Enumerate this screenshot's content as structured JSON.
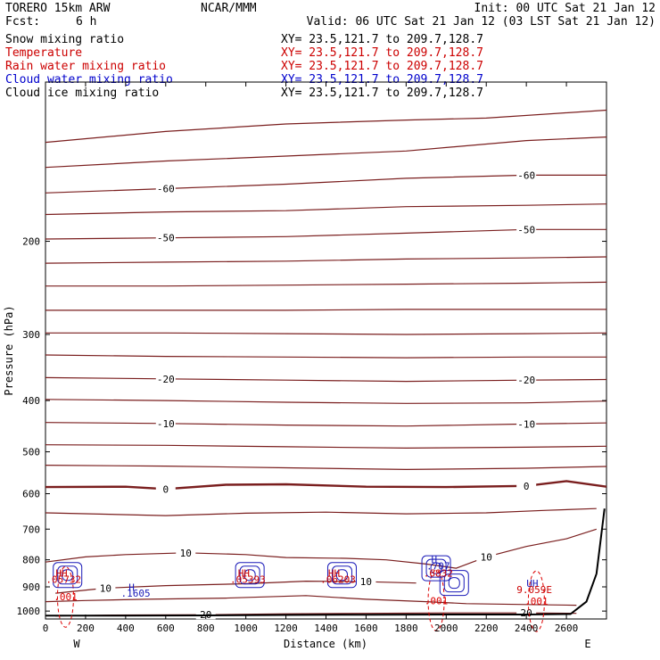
{
  "header": {
    "model": "TORERO  15km ARW",
    "center": "NCAR/MMM",
    "init": "Init: 00 UTC Sat 21 Jan 12",
    "fcst_label": "Fcst:",
    "fcst_value": "6 h",
    "valid": "Valid: 06 UTC Sat 21 Jan 12 (03 LST Sat 21 Jan 12)"
  },
  "legend": [
    {
      "name": "Snow mixing ratio",
      "xy": "XY=  23.5,121.7 to 209.7,128.7",
      "color": "#000000"
    },
    {
      "name": "Temperature",
      "xy": "XY=  23.5,121.7 to 209.7,128.7",
      "color": "#cc0000"
    },
    {
      "name": "Rain water mixing ratio",
      "xy": "XY=  23.5,121.7 to 209.7,128.7",
      "color": "#cc0000"
    },
    {
      "name": "Cloud water mixing ratio",
      "xy": "XY=  23.5,121.7 to 209.7,128.7",
      "color": "#0000cc"
    },
    {
      "name": "Cloud ice mixing ratio",
      "xy": "XY=  23.5,121.7 to 209.7,128.7",
      "color": "#000000"
    }
  ],
  "colors": {
    "temperature": "#7a1e1e",
    "rain": "#dd0000",
    "cloud_water": "#1a1ab8",
    "terrain": "#000000"
  },
  "chart_data": {
    "type": "line",
    "title": "",
    "xlabel": "Distance (km)",
    "ylabel": "Pressure (hPa)",
    "xlim": [
      0,
      2800
    ],
    "ylim": [
      1035,
      100
    ],
    "y_scale": "log",
    "x_ticks": [
      "0",
      "200",
      "400",
      "600",
      "800",
      "1000",
      "1200",
      "1400",
      "1600",
      "1800",
      "2000",
      "2200",
      "2400",
      "2600"
    ],
    "y_ticks": [
      "200",
      "300",
      "400",
      "500",
      "600",
      "700",
      "800",
      "900",
      "1000"
    ],
    "end_labels": {
      "left": "W",
      "right": "E"
    },
    "temperature_contours": [
      {
        "value": -70,
        "points": [
          [
            0,
            130
          ],
          [
            600,
            124
          ],
          [
            1200,
            120
          ],
          [
            1800,
            118
          ],
          [
            2200,
            117
          ],
          [
            2800,
            113
          ]
        ]
      },
      {
        "value": -60,
        "points": [
          [
            0,
            145
          ],
          [
            600,
            141
          ],
          [
            1200,
            138
          ],
          [
            1800,
            135
          ],
          [
            2400,
            129
          ],
          [
            2800,
            127
          ]
        ]
      },
      {
        "value": -60,
        "label": "-60",
        "points": [
          [
            0,
            162
          ],
          [
            600,
            159
          ],
          [
            1200,
            156
          ],
          [
            1800,
            152
          ],
          [
            2400,
            150
          ],
          [
            2800,
            150
          ]
        ]
      },
      {
        "value": -55,
        "points": [
          [
            0,
            178
          ],
          [
            600,
            176
          ],
          [
            1200,
            175
          ],
          [
            1800,
            172
          ],
          [
            2400,
            171
          ],
          [
            2800,
            170
          ]
        ]
      },
      {
        "value": -50,
        "label": "-50",
        "points": [
          [
            0,
            198
          ],
          [
            600,
            197
          ],
          [
            1200,
            196
          ],
          [
            1800,
            193
          ],
          [
            2400,
            190
          ],
          [
            2800,
            190
          ]
        ]
      },
      {
        "value": -45,
        "points": [
          [
            0,
            220
          ],
          [
            600,
            219
          ],
          [
            1200,
            218
          ],
          [
            1800,
            216
          ],
          [
            2400,
            215
          ],
          [
            2800,
            214
          ]
        ]
      },
      {
        "value": -40,
        "points": [
          [
            0,
            243
          ],
          [
            600,
            243
          ],
          [
            1200,
            242
          ],
          [
            1800,
            241
          ],
          [
            2400,
            240
          ],
          [
            2800,
            239
          ]
        ]
      },
      {
        "value": -35,
        "points": [
          [
            0,
            270
          ],
          [
            600,
            270
          ],
          [
            1200,
            270
          ],
          [
            1800,
            269
          ],
          [
            2400,
            269
          ],
          [
            2800,
            269
          ]
        ]
      },
      {
        "value": -30,
        "points": [
          [
            0,
            298
          ],
          [
            600,
            298
          ],
          [
            1200,
            299
          ],
          [
            1800,
            300
          ],
          [
            2400,
            299
          ],
          [
            2800,
            298
          ]
        ]
      },
      {
        "value": -25,
        "points": [
          [
            0,
            328
          ],
          [
            600,
            330
          ],
          [
            1200,
            331
          ],
          [
            1800,
            332
          ],
          [
            2400,
            331
          ],
          [
            2800,
            331
          ]
        ]
      },
      {
        "value": -20,
        "label": "-20",
        "points": [
          [
            0,
            362
          ],
          [
            600,
            364
          ],
          [
            1200,
            366
          ],
          [
            1800,
            368
          ],
          [
            2400,
            366
          ],
          [
            2800,
            365
          ]
        ]
      },
      {
        "value": -15,
        "points": [
          [
            0,
            398
          ],
          [
            600,
            400
          ],
          [
            1200,
            403
          ],
          [
            1800,
            405
          ],
          [
            2400,
            404
          ],
          [
            2800,
            401
          ]
        ]
      },
      {
        "value": -10,
        "label": "-10",
        "points": [
          [
            0,
            440
          ],
          [
            600,
            442
          ],
          [
            1200,
            445
          ],
          [
            1800,
            447
          ],
          [
            2400,
            443
          ],
          [
            2800,
            441
          ]
        ]
      },
      {
        "value": -5,
        "points": [
          [
            0,
            485
          ],
          [
            600,
            486
          ],
          [
            1200,
            489
          ],
          [
            1800,
            492
          ],
          [
            2400,
            490
          ],
          [
            2800,
            488
          ]
        ]
      },
      {
        "value": -5,
        "points": [
          [
            0,
            530
          ],
          [
            600,
            532
          ],
          [
            1200,
            536
          ],
          [
            1800,
            540
          ],
          [
            2400,
            537
          ],
          [
            2800,
            533
          ]
        ]
      },
      {
        "value": 0,
        "label": "0",
        "bold": true,
        "points": [
          [
            0,
            583
          ],
          [
            400,
            582
          ],
          [
            600,
            588
          ],
          [
            900,
            577
          ],
          [
            1200,
            576
          ],
          [
            1600,
            582
          ],
          [
            2000,
            583
          ],
          [
            2400,
            580
          ],
          [
            2600,
            568
          ],
          [
            2800,
            582
          ]
        ]
      },
      {
        "value": 5,
        "points": [
          [
            0,
            652
          ],
          [
            600,
            660
          ],
          [
            1000,
            653
          ],
          [
            1400,
            650
          ],
          [
            1800,
            655
          ],
          [
            2200,
            652
          ],
          [
            2500,
            645
          ],
          [
            2750,
            640
          ]
        ]
      },
      {
        "value": 10,
        "label": "10",
        "points": [
          [
            0,
            808
          ],
          [
            200,
            790
          ],
          [
            400,
            782
          ],
          [
            700,
            776
          ],
          [
            1000,
            782
          ],
          [
            1200,
            792
          ],
          [
            1500,
            795
          ],
          [
            1700,
            800
          ],
          [
            1900,
            815
          ],
          [
            2050,
            830
          ],
          [
            2200,
            790
          ],
          [
            2400,
            755
          ],
          [
            2600,
            730
          ],
          [
            2750,
            700
          ]
        ]
      },
      {
        "value": 10,
        "label": "10",
        "points": [
          [
            50,
            925
          ],
          [
            300,
            905
          ],
          [
            600,
            895
          ],
          [
            1000,
            888
          ],
          [
            1300,
            878
          ],
          [
            1600,
            880
          ],
          [
            1850,
            885
          ]
        ]
      },
      {
        "value": 15,
        "points": [
          [
            0,
            960
          ],
          [
            200,
            955
          ],
          [
            500,
            950
          ],
          [
            900,
            945
          ],
          [
            1300,
            935
          ],
          [
            1600,
            950
          ],
          [
            1900,
            960
          ],
          [
            2100,
            968
          ],
          [
            2400,
            972
          ],
          [
            2650,
            975
          ]
        ]
      },
      {
        "value": 20,
        "label": "20",
        "points": [
          [
            50,
            1022
          ],
          [
            300,
            1018
          ],
          [
            800,
            1016
          ],
          [
            1200,
            1012
          ],
          [
            1600,
            1010
          ],
          [
            2000,
            1008
          ],
          [
            2400,
            1008
          ],
          [
            2650,
            1010
          ]
        ]
      }
    ],
    "terrain_surface_hpa": [
      [
        0,
        1020
      ],
      [
        400,
        1020
      ],
      [
        800,
        1019
      ],
      [
        1200,
        1017
      ],
      [
        1600,
        1016
      ],
      [
        2000,
        1015
      ],
      [
        2400,
        1015
      ],
      [
        2620,
        1013
      ],
      [
        2700,
        960
      ],
      [
        2750,
        850
      ],
      [
        2790,
        640
      ]
    ],
    "rain_contours": [
      {
        "value": 0.001,
        "label": ".001",
        "center": [
          100,
          940
        ]
      },
      {
        "value": 0.001,
        "label": ".001",
        "center": [
          1950,
          955
        ]
      },
      {
        "value": 0.001,
        "label": ".001",
        "center": [
          2450,
          958
        ]
      }
    ],
    "cloud_water_cells": [
      {
        "center": [
          110,
          855
        ]
      },
      {
        "center": [
          1020,
          855
        ]
      },
      {
        "center": [
          1480,
          855
        ]
      },
      {
        "center": [
          1950,
          830
        ]
      },
      {
        "center": [
          2040,
          885
        ]
      }
    ],
    "point_labels": [
      {
        "text": "HH",
        "color": "#cc0000",
        "at": [
          80,
          860
        ]
      },
      {
        "text": ".05732",
        "color": "#cc0000",
        "at": [
          90,
          885
        ]
      },
      {
        "text": "H",
        "color": "#1a1ab8",
        "at": [
          430,
          915
        ]
      },
      {
        "text": ".1605",
        "color": "#1a1ab8",
        "at": [
          450,
          940
        ]
      },
      {
        "text": "HH",
        "color": "#cc0000",
        "at": [
          990,
          860
        ]
      },
      {
        "text": ".05393",
        "color": "#cc0000",
        "at": [
          1010,
          885
        ]
      },
      {
        "text": "HH",
        "color": "#cc0000",
        "at": [
          1440,
          860
        ]
      },
      {
        "text": ".06203",
        "color": "#cc0000",
        "at": [
          1460,
          885
        ]
      },
      {
        "text": "H",
        "color": "#1a1ab8",
        "at": [
          1940,
          810
        ]
      },
      {
        "text": ".707",
        "color": "#1a1ab8",
        "at": [
          1960,
          835
        ]
      },
      {
        "text": ".6832",
        "color": "#cc0000",
        "at": [
          1960,
          860
        ]
      },
      {
        "text": "UH",
        "color": "#1a1ab8",
        "at": [
          2430,
          900
        ]
      },
      {
        "text": "9.059E",
        "color": "#cc0000",
        "at": [
          2440,
          925
        ]
      }
    ]
  }
}
